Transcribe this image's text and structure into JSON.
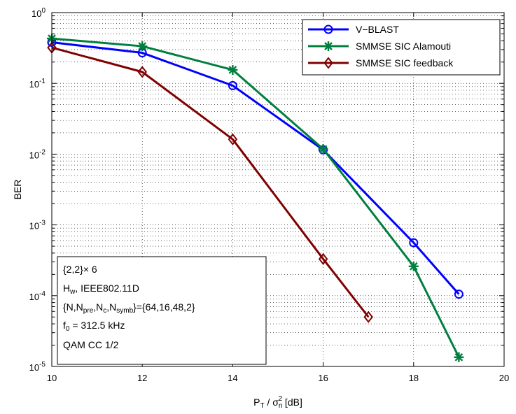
{
  "chart_data": {
    "type": "line",
    "xlabel": "P_T / σ_n^2 [dB]",
    "ylabel": "BER",
    "x_scale": "linear",
    "y_scale": "log",
    "xlim": [
      10,
      20
    ],
    "ylim": [
      1e-05,
      1
    ],
    "xticks": [
      10,
      12,
      14,
      16,
      18,
      20
    ],
    "yticks": [
      1e-05,
      0.0001,
      0.001,
      0.01,
      0.1,
      1
    ],
    "grid": true,
    "legend_position": "top-right",
    "series": [
      {
        "name": "V−BLAST",
        "color": "#0000ff",
        "marker": "circle",
        "x": [
          10,
          12,
          14,
          16,
          18,
          19
        ],
        "y": [
          0.38,
          0.27,
          0.093,
          0.0115,
          0.00056,
          0.000105
        ]
      },
      {
        "name": "SMMSE SIC Alamouti",
        "color": "#007f3f",
        "marker": "asterisk",
        "x": [
          10,
          12,
          14,
          16,
          18,
          19
        ],
        "y": [
          0.43,
          0.335,
          0.155,
          0.0118,
          0.00026,
          1.35e-05
        ]
      },
      {
        "name": "SMMSE SIC feedback",
        "color": "#800000",
        "marker": "diamond",
        "x": [
          10,
          12,
          14,
          16,
          17
        ],
        "y": [
          0.32,
          0.145,
          0.0162,
          0.00033,
          5e-05
        ]
      }
    ],
    "annotation": {
      "lines": [
        "{2,2}× 6",
        "H_w, IEEE802.11D",
        "{N,N_pre,N_c,N_symb}={64,16,48,2}",
        "f_0 = 312.5 kHz",
        "QAM CC 1/2"
      ]
    }
  }
}
